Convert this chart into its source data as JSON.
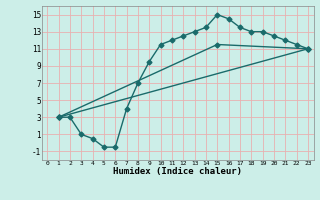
{
  "xlabel": "Humidex (Indice chaleur)",
  "ylabel": "",
  "background_color": "#cceee8",
  "grid_color": "#e8b0b0",
  "line_color": "#1a6b6b",
  "marker": "D",
  "markersize": 2.5,
  "linewidth": 1.0,
  "xlim": [
    -0.5,
    23.5
  ],
  "ylim": [
    -2,
    16
  ],
  "xticks": [
    0,
    1,
    2,
    3,
    4,
    5,
    6,
    7,
    8,
    9,
    10,
    11,
    12,
    13,
    14,
    15,
    16,
    17,
    18,
    19,
    20,
    21,
    22,
    23
  ],
  "yticks": [
    -1,
    1,
    3,
    5,
    7,
    9,
    11,
    13,
    15
  ],
  "series": [
    {
      "x": [
        1,
        2,
        3,
        4,
        5,
        6,
        7,
        8,
        9,
        10,
        11,
        12,
        13,
        14,
        15,
        16,
        17,
        18,
        19,
        20,
        21,
        22,
        23
      ],
      "y": [
        3,
        3,
        1,
        0.5,
        -0.5,
        -0.5,
        4,
        7,
        9.5,
        11.5,
        12,
        12.5,
        13,
        13.5,
        15,
        14.5,
        13.5,
        13,
        13,
        12.5,
        12,
        11.5,
        11
      ]
    },
    {
      "x": [
        1,
        23
      ],
      "y": [
        3,
        11
      ]
    },
    {
      "x": [
        1,
        15,
        23
      ],
      "y": [
        3,
        11.5,
        11
      ]
    }
  ]
}
